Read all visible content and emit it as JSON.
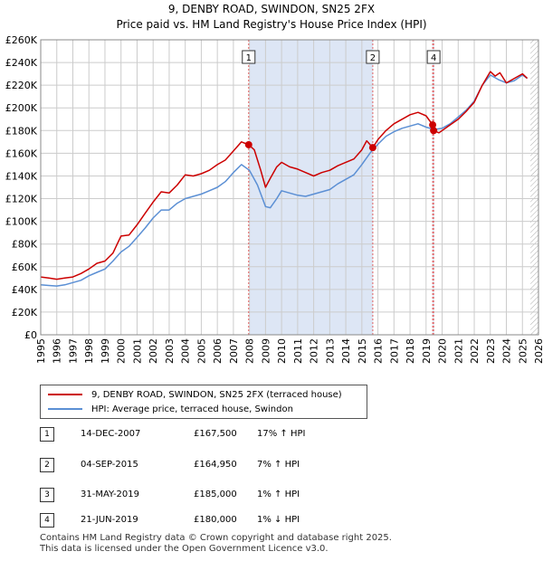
{
  "header": {
    "title": "9, DENBY ROAD, SWINDON, SN25 2FX",
    "subtitle": "Price paid vs. HM Land Registry's House Price Index (HPI)"
  },
  "colors": {
    "property_line": "#cc0000",
    "hpi_line": "#5b8fd4",
    "shade": "#dde6f5",
    "marker_line": "#e06060",
    "grid": "#cccccc"
  },
  "chart_data": {
    "type": "line",
    "title": "9, DENBY ROAD, SWINDON, SN25 2FX",
    "ylim": [
      0,
      260000
    ],
    "xlim": [
      1995,
      2026
    ],
    "yticks": [
      0,
      20000,
      40000,
      60000,
      80000,
      100000,
      120000,
      140000,
      160000,
      180000,
      200000,
      220000,
      240000,
      260000
    ],
    "ytick_labels": [
      "£0",
      "£20K",
      "£40K",
      "£60K",
      "£80K",
      "£100K",
      "£120K",
      "£140K",
      "£160K",
      "£180K",
      "£200K",
      "£220K",
      "£240K",
      "£260K"
    ],
    "xticks": [
      1995,
      1996,
      1997,
      1998,
      1999,
      2000,
      2001,
      2002,
      2003,
      2004,
      2005,
      2006,
      2007,
      2008,
      2009,
      2010,
      2011,
      2012,
      2013,
      2014,
      2015,
      2016,
      2017,
      2018,
      2019,
      2020,
      2021,
      2022,
      2023,
      2024,
      2025,
      2026
    ],
    "shaded_regions": [
      [
        2008.0,
        2015.7
      ],
      [
        2019.4,
        2019.5
      ]
    ],
    "hatched_from": 2025.5,
    "series": [
      {
        "name": "9, DENBY ROAD, SWINDON, SN25 2FX (terraced house)",
        "x": [
          1995.0,
          1995.5,
          1996.0,
          1996.5,
          1997.0,
          1997.5,
          1998.0,
          1998.5,
          1999.0,
          1999.5,
          2000.0,
          2000.5,
          2001.0,
          2001.5,
          2002.0,
          2002.5,
          2003.0,
          2003.5,
          2004.0,
          2004.5,
          2005.0,
          2005.5,
          2006.0,
          2006.5,
          2007.0,
          2007.5,
          2007.95,
          2008.3,
          2008.7,
          2009.0,
          2009.3,
          2009.7,
          2010.0,
          2010.5,
          2011.0,
          2011.5,
          2012.0,
          2012.5,
          2013.0,
          2013.5,
          2014.0,
          2014.5,
          2015.0,
          2015.3,
          2015.68,
          2016.0,
          2016.5,
          2017.0,
          2017.5,
          2018.0,
          2018.5,
          2019.0,
          2019.41,
          2019.47,
          2019.8,
          2020.0,
          2020.5,
          2021.0,
          2021.5,
          2022.0,
          2022.5,
          2023.0,
          2023.3,
          2023.6,
          2024.0,
          2024.5,
          2025.0,
          2025.3
        ],
        "values": [
          51000,
          50000,
          49000,
          50000,
          51000,
          54000,
          58000,
          63000,
          65000,
          72000,
          87000,
          88000,
          97000,
          107000,
          117000,
          126000,
          125000,
          132000,
          141000,
          140000,
          142000,
          145000,
          150000,
          154000,
          162000,
          170000,
          167500,
          163000,
          145000,
          130000,
          138000,
          148000,
          152000,
          148000,
          146000,
          143000,
          140000,
          143000,
          145000,
          149000,
          152000,
          155000,
          163000,
          171000,
          164950,
          172000,
          180000,
          186000,
          190000,
          194000,
          196000,
          193000,
          185000,
          180000,
          178000,
          180000,
          185000,
          190000,
          197000,
          205000,
          220000,
          232000,
          228000,
          231000,
          222000,
          226000,
          230000,
          226000
        ]
      },
      {
        "name": "HPI: Average price, terraced house, Swindon",
        "x": [
          1995.0,
          1995.5,
          1996.0,
          1996.5,
          1997.0,
          1997.5,
          1998.0,
          1998.5,
          1999.0,
          1999.5,
          2000.0,
          2000.5,
          2001.0,
          2001.5,
          2002.0,
          2002.5,
          2003.0,
          2003.5,
          2004.0,
          2004.5,
          2005.0,
          2005.5,
          2006.0,
          2006.5,
          2007.0,
          2007.5,
          2008.0,
          2008.5,
          2009.0,
          2009.3,
          2009.7,
          2010.0,
          2010.5,
          2011.0,
          2011.5,
          2012.0,
          2012.5,
          2013.0,
          2013.5,
          2014.0,
          2014.5,
          2015.0,
          2015.5,
          2016.0,
          2016.5,
          2017.0,
          2017.5,
          2018.0,
          2018.5,
          2019.0,
          2019.5,
          2020.0,
          2020.5,
          2021.0,
          2021.5,
          2022.0,
          2022.5,
          2023.0,
          2023.5,
          2024.0,
          2024.5,
          2025.0,
          2025.3
        ],
        "values": [
          44000,
          43500,
          43000,
          44000,
          46000,
          48000,
          52000,
          55000,
          58000,
          65000,
          73000,
          78000,
          86000,
          94000,
          103000,
          110000,
          110000,
          116000,
          120000,
          122000,
          124000,
          127000,
          130000,
          135000,
          143000,
          150000,
          145000,
          132000,
          113000,
          112000,
          120000,
          127000,
          125000,
          123000,
          122000,
          124000,
          126000,
          128000,
          133000,
          137000,
          141000,
          150000,
          160000,
          168000,
          175000,
          179000,
          182000,
          184000,
          186000,
          183000,
          181000,
          182000,
          186000,
          192000,
          198000,
          206000,
          220000,
          229000,
          225000,
          222000,
          224000,
          229000,
          226000
        ]
      }
    ],
    "sales_markers": [
      {
        "label": "1",
        "x": 2007.95,
        "value": 167500
      },
      {
        "label": "2",
        "x": 2015.68,
        "value": 164950
      },
      {
        "label": "3",
        "x": 2019.41,
        "value": 185000
      },
      {
        "label": "4",
        "x": 2019.47,
        "value": 180000
      }
    ],
    "marker_boxes_shown": [
      "1",
      "2",
      "4"
    ]
  },
  "legend": {
    "property": "9, DENBY ROAD, SWINDON, SN25 2FX (terraced house)",
    "hpi": "HPI: Average price, terraced house, Swindon"
  },
  "sales": [
    {
      "num": "1",
      "date": "14-DEC-2007",
      "price": "£167,500",
      "hpi": "17% ↑ HPI"
    },
    {
      "num": "2",
      "date": "04-SEP-2015",
      "price": "£164,950",
      "hpi": "7% ↑ HPI"
    },
    {
      "num": "3",
      "date": "31-MAY-2019",
      "price": "£185,000",
      "hpi": "1% ↑ HPI"
    },
    {
      "num": "4",
      "date": "21-JUN-2019",
      "price": "£180,000",
      "hpi": "1% ↓ HPI"
    }
  ],
  "footer": {
    "line1": "Contains HM Land Registry data © Crown copyright and database right 2025.",
    "line2": "This data is licensed under the Open Government Licence v3.0."
  }
}
